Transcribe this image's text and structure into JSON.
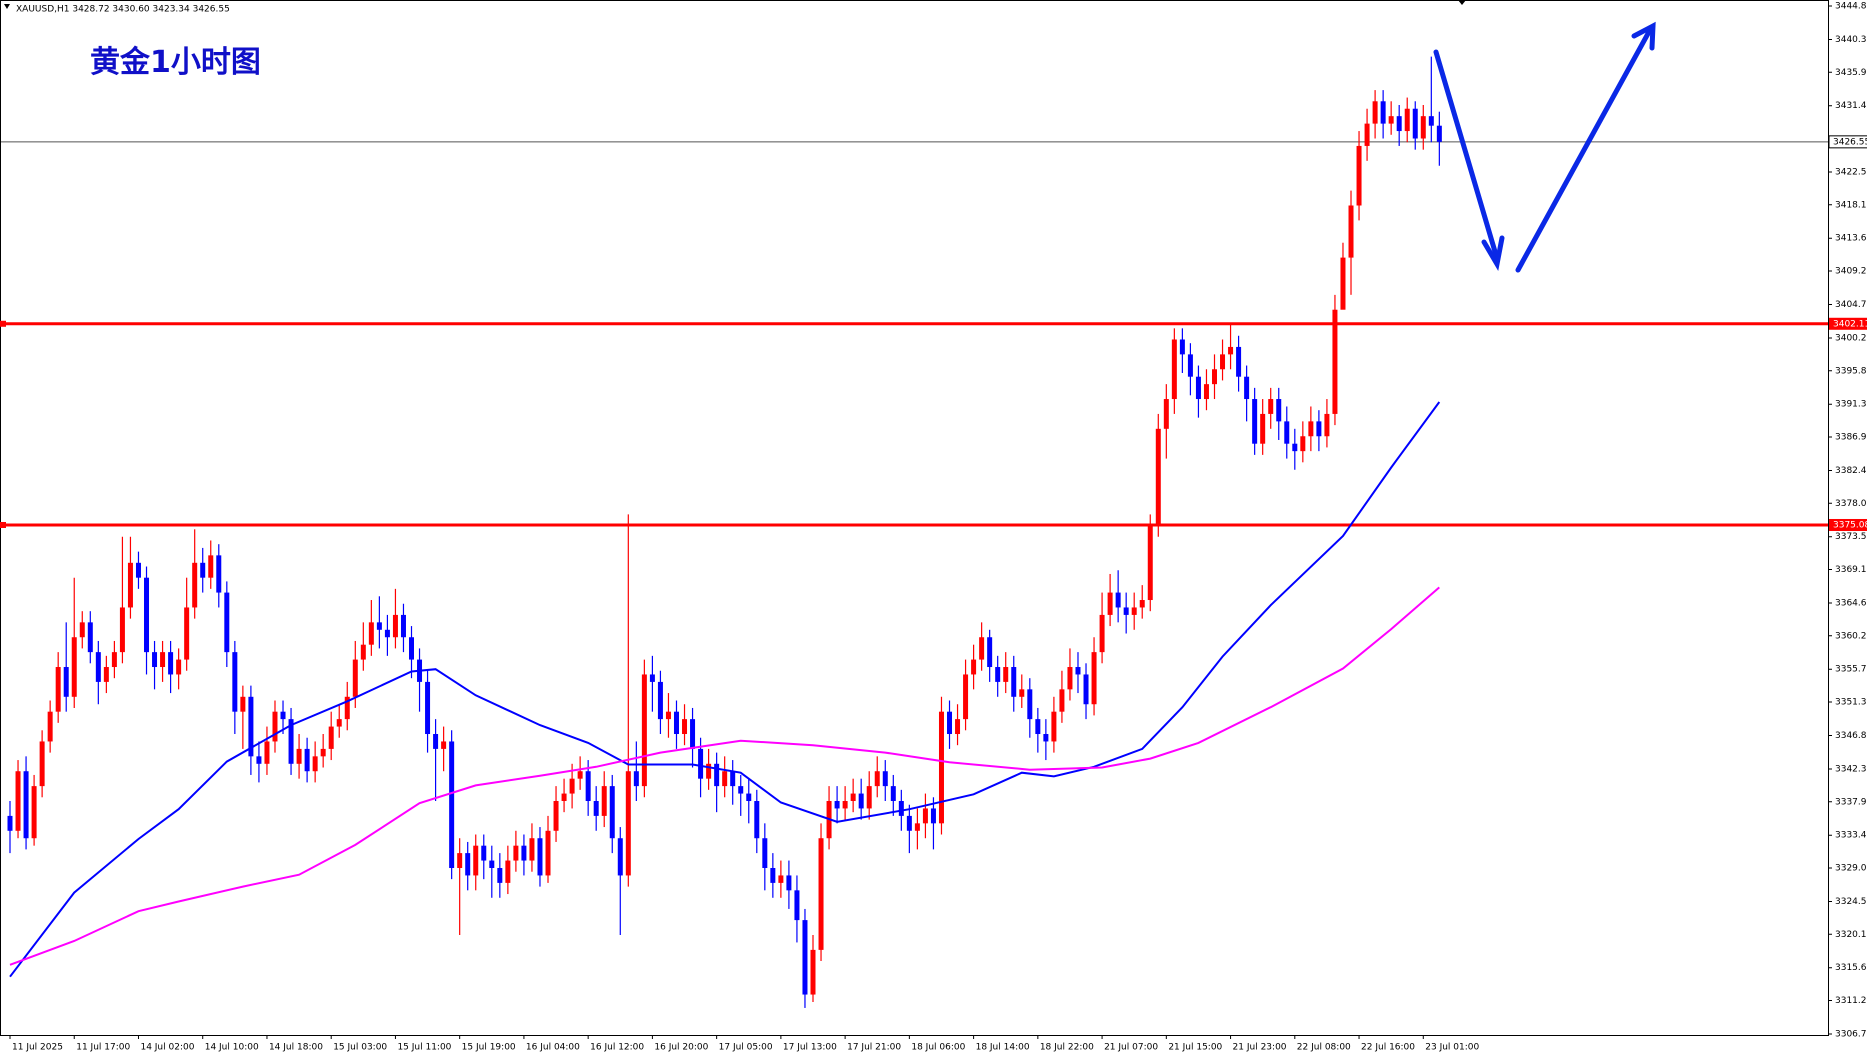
{
  "chart_data": {
    "type": "candlestick",
    "header": "XAUUSD,H1  3428.72 3430.60 3423.34 3426.55",
    "title": "黄金1小时图",
    "up_color": "#ff0000",
    "down_color": "#0000ff",
    "ylim": [
      3306.7,
      3444.8
    ],
    "yticks": [
      {
        "value": 3306.7,
        "label": "3306.70"
      },
      {
        "value": 3311.2,
        "label": "3311.20"
      },
      {
        "value": 3315.6,
        "label": "3315.60"
      },
      {
        "value": 3320.1,
        "label": "3320.10"
      },
      {
        "value": 3324.5,
        "label": "3324.50"
      },
      {
        "value": 3329,
        "label": "3329.00"
      },
      {
        "value": 3333.4,
        "label": "3333.40"
      },
      {
        "value": 3337.9,
        "label": "3337.90"
      },
      {
        "value": 3342.3,
        "label": "3342.30"
      },
      {
        "value": 3346.8,
        "label": "3346.80"
      },
      {
        "value": 3351.3,
        "label": "3351.30"
      },
      {
        "value": 3355.7,
        "label": "3355.70"
      },
      {
        "value": 3360.2,
        "label": "3360.20"
      },
      {
        "value": 3364.6,
        "label": "3364.60"
      },
      {
        "value": 3369.1,
        "label": "3369.10"
      },
      {
        "value": 3373.5,
        "label": "3373.50"
      },
      {
        "value": 3378,
        "label": "3378.00"
      },
      {
        "value": 3382.4,
        "label": "3382.40"
      },
      {
        "value": 3386.9,
        "label": "3386.90"
      },
      {
        "value": 3391.3,
        "label": "3391.30"
      },
      {
        "value": 3395.8,
        "label": "3395.80"
      },
      {
        "value": 3400.2,
        "label": "3400.20"
      },
      {
        "value": 3404.7,
        "label": "3404.70"
      },
      {
        "value": 3409.2,
        "label": "3409.20"
      },
      {
        "value": 3413.6,
        "label": "3413.60"
      },
      {
        "value": 3418.1,
        "label": "3418.10"
      },
      {
        "value": 3422.5,
        "label": "3422.50"
      },
      {
        "value": 3431.4,
        "label": "3431.40"
      },
      {
        "value": 3435.9,
        "label": "3435.90"
      },
      {
        "value": 3440.3,
        "label": "3440.30"
      },
      {
        "value": 3444.8,
        "label": "3444.80"
      }
    ],
    "xticks": [
      {
        "value": 0,
        "label": "11 Jul 2025"
      },
      {
        "value": 8,
        "label": "11 Jul 17:00"
      },
      {
        "value": 16,
        "label": "14 Jul 02:00"
      },
      {
        "value": 24,
        "label": "14 Jul 10:00"
      },
      {
        "value": 32,
        "label": "14 Jul 18:00"
      },
      {
        "value": 40,
        "label": "15 Jul 03:00"
      },
      {
        "value": 48,
        "label": "15 Jul 11:00"
      },
      {
        "value": 56,
        "label": "15 Jul 19:00"
      },
      {
        "value": 64,
        "label": "16 Jul 04:00"
      },
      {
        "value": 72,
        "label": "16 Jul 12:00"
      },
      {
        "value": 80,
        "label": "16 Jul 20:00"
      },
      {
        "value": 88,
        "label": "17 Jul 05:00"
      },
      {
        "value": 96,
        "label": "17 Jul 13:00"
      },
      {
        "value": 104,
        "label": "17 Jul 21:00"
      },
      {
        "value": 112,
        "label": "18 Jul 06:00"
      },
      {
        "value": 120,
        "label": "18 Jul 14:00"
      },
      {
        "value": 128,
        "label": "18 Jul 22:00"
      },
      {
        "value": 136,
        "label": "21 Jul 07:00"
      },
      {
        "value": 144,
        "label": "21 Jul 15:00"
      },
      {
        "value": 152,
        "label": "21 Jul 23:00"
      },
      {
        "value": 160,
        "label": "22 Jul 08:00"
      },
      {
        "value": 168,
        "label": "22 Jul 16:00"
      },
      {
        "value": 176,
        "label": "23 Jul 01:00"
      }
    ],
    "levels": [
      {
        "value": 3402.11,
        "color": "#ff0000"
      },
      {
        "value": 3375.08,
        "color": "#ff0000"
      }
    ],
    "last_price": 3426.55,
    "ohlc": [
      [
        3336,
        3338,
        3331,
        3334
      ],
      [
        3334,
        3343.5,
        3333,
        3342
      ],
      [
        3342,
        3344,
        3331.5,
        3333
      ],
      [
        3333,
        3341.5,
        3332,
        3340
      ],
      [
        3340,
        3347.5,
        3338.5,
        3346
      ],
      [
        3346,
        3351.5,
        3344.5,
        3350
      ],
      [
        3350,
        3358,
        3348.5,
        3356
      ],
      [
        3356,
        3362,
        3350,
        3352
      ],
      [
        3352,
        3368,
        3350.5,
        3360
      ],
      [
        3360,
        3363.5,
        3358.5,
        3362
      ],
      [
        3362,
        3363.5,
        3356.5,
        3358
      ],
      [
        3358,
        3359.5,
        3351,
        3354
      ],
      [
        3354,
        3357.5,
        3352.5,
        3356
      ],
      [
        3356,
        3359.5,
        3354.5,
        3358
      ],
      [
        3358,
        3373.5,
        3356.5,
        3364
      ],
      [
        3364,
        3373.5,
        3362.5,
        3370
      ],
      [
        3370,
        3371.5,
        3366.5,
        3368
      ],
      [
        3368,
        3369.5,
        3355,
        3358
      ],
      [
        3358,
        3359.5,
        3353,
        3356
      ],
      [
        3356,
        3359.5,
        3354,
        3358
      ],
      [
        3358,
        3359.5,
        3352.5,
        3355
      ],
      [
        3355,
        3358.5,
        3353,
        3357
      ],
      [
        3357,
        3368,
        3355.5,
        3364
      ],
      [
        3364,
        3374.5,
        3362.5,
        3370
      ],
      [
        3370,
        3372,
        3366,
        3368
      ],
      [
        3368,
        3373,
        3366.5,
        3371
      ],
      [
        3371,
        3372.5,
        3364,
        3366
      ],
      [
        3366,
        3367.5,
        3356,
        3358
      ],
      [
        3358,
        3359.5,
        3347,
        3350
      ],
      [
        3350,
        3353.5,
        3345,
        3352
      ],
      [
        3352,
        3353.5,
        3341.5,
        3344
      ],
      [
        3344,
        3346,
        3340.5,
        3343
      ],
      [
        3343,
        3348,
        3341.5,
        3346
      ],
      [
        3346,
        3351.5,
        3344.5,
        3350
      ],
      [
        3350,
        3351.5,
        3347,
        3349
      ],
      [
        3349,
        3350.5,
        3341.5,
        3343
      ],
      [
        3343,
        3347,
        3341,
        3345
      ],
      [
        3345,
        3346.5,
        3340.5,
        3342
      ],
      [
        3342,
        3346,
        3340.5,
        3344
      ],
      [
        3344,
        3347,
        3342.5,
        3345
      ],
      [
        3345,
        3350,
        3343.5,
        3348
      ],
      [
        3348,
        3351,
        3346.5,
        3349
      ],
      [
        3349,
        3354,
        3347.5,
        3352
      ],
      [
        3352,
        3359.5,
        3350.5,
        3357
      ],
      [
        3357,
        3362,
        3355.5,
        3359
      ],
      [
        3359,
        3365,
        3357.5,
        3362
      ],
      [
        3362,
        3365.5,
        3358.5,
        3361
      ],
      [
        3361,
        3363,
        3357.5,
        3360
      ],
      [
        3360,
        3366.5,
        3358.5,
        3363
      ],
      [
        3363,
        3364.5,
        3358,
        3360
      ],
      [
        3360,
        3361.5,
        3354.5,
        3357
      ],
      [
        3357,
        3358.5,
        3350,
        3354
      ],
      [
        3354,
        3355.5,
        3344.5,
        3347
      ],
      [
        3347,
        3349,
        3338,
        3345
      ],
      [
        3345,
        3348,
        3342,
        3346
      ],
      [
        3346,
        3347.5,
        3327.5,
        3329
      ],
      [
        3329,
        3333,
        3320,
        3331
      ],
      [
        3331,
        3332.5,
        3326,
        3328
      ],
      [
        3328,
        3333.5,
        3326,
        3332
      ],
      [
        3332,
        3333.5,
        3327.5,
        3330
      ],
      [
        3330,
        3332,
        3325,
        3329
      ],
      [
        3329,
        3331,
        3325,
        3327
      ],
      [
        3327,
        3332,
        3325.5,
        3330
      ],
      [
        3330,
        3334,
        3328.5,
        3332
      ],
      [
        3332,
        3333.5,
        3328,
        3330
      ],
      [
        3330,
        3335,
        3328.5,
        3333
      ],
      [
        3333,
        3334.5,
        3326.5,
        3328
      ],
      [
        3328,
        3336,
        3327,
        3334
      ],
      [
        3334,
        3340,
        3332.5,
        3338
      ],
      [
        3338,
        3341,
        3336.5,
        3339
      ],
      [
        3339,
        3343,
        3337,
        3341
      ],
      [
        3341,
        3344,
        3339.5,
        3342
      ],
      [
        3342,
        3343.5,
        3336,
        3338
      ],
      [
        3338,
        3340,
        3334,
        3336
      ],
      [
        3336,
        3342,
        3334.5,
        3340
      ],
      [
        3340,
        3341.5,
        3331,
        3333
      ],
      [
        3333,
        3334.5,
        3320,
        3328
      ],
      [
        3328,
        3376.5,
        3326.5,
        3342
      ],
      [
        3342,
        3346,
        3338,
        3340
      ],
      [
        3340,
        3357,
        3338.5,
        3355
      ],
      [
        3355,
        3357.5,
        3350,
        3354
      ],
      [
        3354,
        3355.5,
        3347,
        3349
      ],
      [
        3349,
        3352.5,
        3346.5,
        3350
      ],
      [
        3350,
        3351.5,
        3345,
        3347
      ],
      [
        3347,
        3351,
        3345.5,
        3349
      ],
      [
        3349,
        3350.5,
        3342.5,
        3345
      ],
      [
        3345,
        3346.5,
        3338.5,
        3341
      ],
      [
        3341,
        3345,
        3339.5,
        3343
      ],
      [
        3343,
        3344.5,
        3336.5,
        3340
      ],
      [
        3340,
        3344,
        3338.5,
        3342
      ],
      [
        3342,
        3343.5,
        3337.5,
        3340
      ],
      [
        3340,
        3341.5,
        3336,
        3339
      ],
      [
        3339,
        3341,
        3335,
        3338
      ],
      [
        3338,
        3339.5,
        3331,
        3333
      ],
      [
        3333,
        3335,
        3326,
        3329
      ],
      [
        3329,
        3331,
        3325,
        3327
      ],
      [
        3327,
        3330,
        3325,
        3328
      ],
      [
        3328,
        3330,
        3323.5,
        3326
      ],
      [
        3326,
        3328,
        3319,
        3322
      ],
      [
        3322,
        3323.5,
        3310.2,
        3312
      ],
      [
        3312,
        3320,
        3311,
        3318
      ],
      [
        3318,
        3335,
        3316.5,
        3333
      ],
      [
        3333,
        3340,
        3331.5,
        3338
      ],
      [
        3338,
        3340,
        3335,
        3337
      ],
      [
        3337,
        3340,
        3335.5,
        3338
      ],
      [
        3338,
        3341,
        3336.5,
        3339
      ],
      [
        3339,
        3341,
        3335.5,
        3337
      ],
      [
        3337,
        3342,
        3335.5,
        3340
      ],
      [
        3340,
        3344,
        3338.5,
        3342
      ],
      [
        3342,
        3343.5,
        3338,
        3340
      ],
      [
        3340,
        3341.5,
        3336,
        3338
      ],
      [
        3338,
        3339.5,
        3334,
        3336
      ],
      [
        3336,
        3337.5,
        3331,
        3334
      ],
      [
        3334,
        3337,
        3331.5,
        3335
      ],
      [
        3335,
        3339,
        3333,
        3337
      ],
      [
        3337,
        3338.5,
        3331.5,
        3335
      ],
      [
        3335,
        3352,
        3333.5,
        3350
      ],
      [
        3350,
        3351.5,
        3345,
        3347
      ],
      [
        3347,
        3351,
        3345.5,
        3349
      ],
      [
        3349,
        3357,
        3347.5,
        3355
      ],
      [
        3355,
        3359,
        3353,
        3357
      ],
      [
        3357,
        3362,
        3355.5,
        3360
      ],
      [
        3360,
        3361,
        3354,
        3356
      ],
      [
        3356,
        3357.5,
        3352,
        3354
      ],
      [
        3354,
        3358,
        3352.5,
        3356
      ],
      [
        3356,
        3357.5,
        3350,
        3352
      ],
      [
        3352,
        3355,
        3350.5,
        3353
      ],
      [
        3353,
        3354.5,
        3346.5,
        3349
      ],
      [
        3349,
        3350.5,
        3344.5,
        3347
      ],
      [
        3347,
        3349,
        3343.5,
        3346
      ],
      [
        3346,
        3352,
        3344.5,
        3350
      ],
      [
        3350,
        3355.5,
        3348.5,
        3353
      ],
      [
        3353,
        3358.5,
        3351.5,
        3356
      ],
      [
        3356,
        3358,
        3352.5,
        3355
      ],
      [
        3355,
        3356.5,
        3349,
        3351
      ],
      [
        3351,
        3360,
        3349.5,
        3358
      ],
      [
        3358,
        3366,
        3356.5,
        3363
      ],
      [
        3363,
        3368.5,
        3361.5,
        3366
      ],
      [
        3366,
        3369,
        3362,
        3364
      ],
      [
        3364,
        3366,
        3360.5,
        3363
      ],
      [
        3363,
        3366,
        3361,
        3364
      ],
      [
        3364,
        3367,
        3362.5,
        3365
      ],
      [
        3365,
        3376.5,
        3363.5,
        3375
      ],
      [
        3375,
        3390,
        3373.5,
        3388
      ],
      [
        3388,
        3394,
        3384,
        3392
      ],
      [
        3392,
        3401.5,
        3390,
        3400
      ],
      [
        3400,
        3401.5,
        3395.5,
        3398
      ],
      [
        3398,
        3399.5,
        3392.5,
        3395
      ],
      [
        3395,
        3396.5,
        3389.5,
        3392
      ],
      [
        3392,
        3396,
        3390.5,
        3394
      ],
      [
        3394,
        3398,
        3392,
        3396
      ],
      [
        3396,
        3400,
        3394.5,
        3398
      ],
      [
        3398,
        3402,
        3396,
        3399
      ],
      [
        3399,
        3400.5,
        3393,
        3395
      ],
      [
        3395,
        3396.5,
        3389,
        3392
      ],
      [
        3392,
        3393.5,
        3384.5,
        3386
      ],
      [
        3386,
        3392,
        3384.5,
        3390
      ],
      [
        3390,
        3393.5,
        3388,
        3392
      ],
      [
        3392,
        3393.5,
        3386.5,
        3389
      ],
      [
        3389,
        3391,
        3384,
        3386
      ],
      [
        3386,
        3388,
        3382.5,
        3385
      ],
      [
        3385,
        3389,
        3383.5,
        3387
      ],
      [
        3387,
        3391,
        3385,
        3389
      ],
      [
        3389,
        3390.5,
        3385,
        3387
      ],
      [
        3387,
        3392,
        3385.5,
        3390
      ],
      [
        3390,
        3406,
        3388.5,
        3404
      ],
      [
        3404,
        3413,
        3405,
        3411
      ],
      [
        3411,
        3420,
        3406,
        3418
      ],
      [
        3418,
        3428,
        3416,
        3426
      ],
      [
        3426,
        3431,
        3424,
        3429
      ],
      [
        3429,
        3433.5,
        3427,
        3432
      ],
      [
        3432,
        3433.5,
        3427,
        3429
      ],
      [
        3429,
        3432,
        3427.5,
        3430
      ],
      [
        3430,
        3431.5,
        3426,
        3428
      ],
      [
        3428,
        3432.5,
        3426.5,
        3431
      ],
      [
        3431,
        3432,
        3425.5,
        3427
      ],
      [
        3427,
        3431.5,
        3425.5,
        3430
      ],
      [
        3430,
        3438,
        3426.5,
        3428.72
      ],
      [
        3428.72,
        3430.6,
        3423.34,
        3426.55
      ]
    ],
    "series": [
      {
        "color": "#0000ff",
        "x": [
          0,
          8,
          16,
          21,
          27,
          35,
          42,
          50,
          53,
          58,
          66,
          72,
          77,
          85,
          91,
          96,
          103,
          112,
          120,
          126,
          130,
          135,
          141,
          146,
          151,
          157,
          166,
          172,
          178
        ],
        "values": [
          3314.4,
          3325.7,
          3332.9,
          3336.9,
          3343.3,
          3348.2,
          3351.4,
          3355.4,
          3355.7,
          3352.2,
          3348.2,
          3345.8,
          3342.9,
          3342.9,
          3341.8,
          3337.8,
          3335.2,
          3336.9,
          3338.9,
          3341.8,
          3341.3,
          3342.6,
          3345,
          3350.6,
          3357.4,
          3364.3,
          3373.6,
          3382.8,
          3391.6
        ]
      },
      {
        "color": "#ff00ff",
        "x": [
          0,
          8,
          16,
          21,
          29,
          36,
          43,
          51,
          58,
          66,
          73,
          81,
          91,
          100,
          109,
          117,
          127,
          136,
          142,
          148,
          157,
          166,
          172,
          178
        ],
        "values": [
          3316,
          3319.2,
          3323.2,
          3324.5,
          3326.5,
          3328.1,
          3332.1,
          3337.7,
          3340.1,
          3341.4,
          3342.6,
          3344.5,
          3346.1,
          3345.5,
          3344.5,
          3343.2,
          3342.2,
          3342.5,
          3343.7,
          3345.8,
          3350.6,
          3355.8,
          3361.1,
          3366.7
        ]
      }
    ]
  }
}
